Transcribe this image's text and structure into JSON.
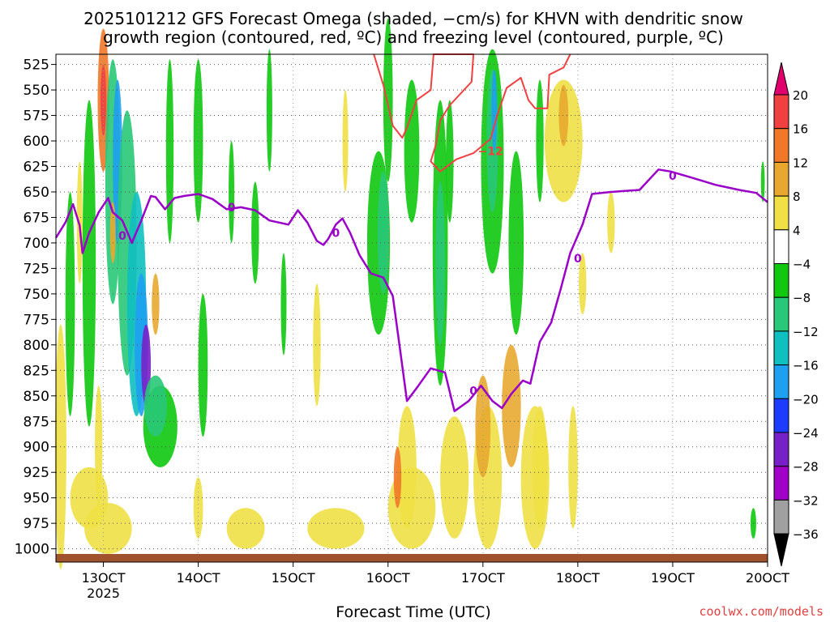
{
  "chart_data": {
    "type": "heatmap",
    "title": "2025101212 GFS Forecast Omega (shaded, −cm/s) for KHVN with dendritic snow",
    "subtitle": "growth region (contoured, red, ºC) and freezing level (contoured, purple, ºC)",
    "xlabel": "Forecast Time (UTC)",
    "ylabel": "",
    "credit": "coolwx.com/models",
    "x_ticks": [
      {
        "label": "13OCT",
        "sub": "2025"
      },
      {
        "label": "14OCT",
        "sub": ""
      },
      {
        "label": "15OCT",
        "sub": ""
      },
      {
        "label": "16OCT",
        "sub": ""
      },
      {
        "label": "17OCT",
        "sub": ""
      },
      {
        "label": "18OCT",
        "sub": ""
      },
      {
        "label": "19OCT",
        "sub": ""
      },
      {
        "label": "20OCT",
        "sub": ""
      }
    ],
    "y_ticks": [
      "525",
      "550",
      "575",
      "600",
      "625",
      "650",
      "675",
      "700",
      "725",
      "750",
      "775",
      "800",
      "825",
      "850",
      "875",
      "900",
      "925",
      "950",
      "975",
      "1000"
    ],
    "x_range_day": [
      12.5,
      20.0
    ],
    "y_range_hpa": [
      515,
      1013
    ],
    "grid": true,
    "colorbar": {
      "labels": [
        "20",
        "16",
        "12",
        "8",
        "4",
        "−4",
        "−8",
        "−12",
        "−16",
        "−20",
        "−24",
        "−28",
        "−32",
        "−36"
      ],
      "colors": [
        "#e0006e",
        "#f04040",
        "#f07828",
        "#e8a830",
        "#f0e046",
        "#ffffff",
        "#10c810",
        "#28c878",
        "#10c0c0",
        "#1ea0f0",
        "#1e3cff",
        "#7820c8",
        "#a000c8",
        "#a0a0a0",
        "#000000"
      ]
    },
    "freezing_level": {
      "color": "#9a00c8",
      "label": "0",
      "points": [
        [
          12.5,
          695
        ],
        [
          12.6,
          680
        ],
        [
          12.68,
          662
        ],
        [
          12.75,
          683
        ],
        [
          12.78,
          710
        ],
        [
          12.85,
          690
        ],
        [
          12.95,
          670
        ],
        [
          13.05,
          656
        ],
        [
          13.1,
          670
        ],
        [
          13.2,
          678
        ],
        [
          13.3,
          700
        ],
        [
          13.4,
          678
        ],
        [
          13.5,
          654
        ],
        [
          13.55,
          655
        ],
        [
          13.65,
          667
        ],
        [
          13.75,
          656
        ],
        [
          13.85,
          654
        ],
        [
          14.0,
          652
        ],
        [
          14.15,
          657
        ],
        [
          14.3,
          667
        ],
        [
          14.45,
          665
        ],
        [
          14.6,
          668
        ],
        [
          14.75,
          678
        ],
        [
          14.95,
          682
        ],
        [
          15.05,
          668
        ],
        [
          15.15,
          680
        ],
        [
          15.25,
          698
        ],
        [
          15.32,
          702
        ],
        [
          15.37,
          696
        ],
        [
          15.45,
          682
        ],
        [
          15.52,
          676
        ],
        [
          15.6,
          690
        ],
        [
          15.7,
          712
        ],
        [
          15.82,
          730
        ],
        [
          15.95,
          734
        ],
        [
          16.05,
          752
        ],
        [
          16.12,
          800
        ],
        [
          16.2,
          855
        ],
        [
          16.32,
          840
        ],
        [
          16.45,
          823
        ],
        [
          16.6,
          827
        ],
        [
          16.7,
          865
        ],
        [
          16.85,
          855
        ],
        [
          16.98,
          840
        ],
        [
          17.1,
          855
        ],
        [
          17.2,
          862
        ],
        [
          17.3,
          848
        ],
        [
          17.42,
          835
        ],
        [
          17.5,
          838
        ],
        [
          17.6,
          797
        ],
        [
          17.72,
          778
        ],
        [
          17.82,
          745
        ],
        [
          17.92,
          710
        ],
        [
          18.05,
          682
        ],
        [
          18.15,
          652
        ],
        [
          18.35,
          650
        ],
        [
          18.65,
          648
        ],
        [
          18.85,
          628
        ],
        [
          18.98,
          630
        ],
        [
          19.2,
          636
        ],
        [
          19.45,
          643
        ],
        [
          19.7,
          648
        ],
        [
          19.88,
          651
        ],
        [
          20.0,
          660
        ]
      ],
      "labels_at": [
        [
          13.2,
          693
        ],
        [
          14.35,
          665
        ],
        [
          15.45,
          690
        ],
        [
          18.0,
          715
        ],
        [
          16.9,
          845
        ],
        [
          19.0,
          634
        ]
      ]
    },
    "dgz_contour": {
      "color": "#f04040",
      "label": "−12",
      "points": [
        [
          15.85,
          515
        ],
        [
          15.95,
          545
        ],
        [
          16.05,
          585
        ],
        [
          16.15,
          597
        ],
        [
          16.2,
          587
        ],
        [
          16.3,
          560
        ],
        [
          16.45,
          550
        ],
        [
          16.48,
          515
        ],
        [
          16.9,
          515
        ],
        [
          16.88,
          542
        ],
        [
          16.65,
          565
        ],
        [
          16.55,
          580
        ],
        [
          16.5,
          605
        ],
        [
          16.45,
          620
        ],
        [
          16.55,
          630
        ],
        [
          16.72,
          618
        ],
        [
          16.9,
          612
        ],
        [
          17.08,
          598
        ],
        [
          17.15,
          575
        ],
        [
          17.25,
          548
        ],
        [
          17.4,
          538
        ],
        [
          17.48,
          560
        ],
        [
          17.55,
          568
        ],
        [
          17.68,
          568
        ],
        [
          17.7,
          535
        ],
        [
          17.85,
          528
        ],
        [
          17.92,
          515
        ]
      ],
      "label_at": [
        17.08,
        610
      ]
    }
  }
}
